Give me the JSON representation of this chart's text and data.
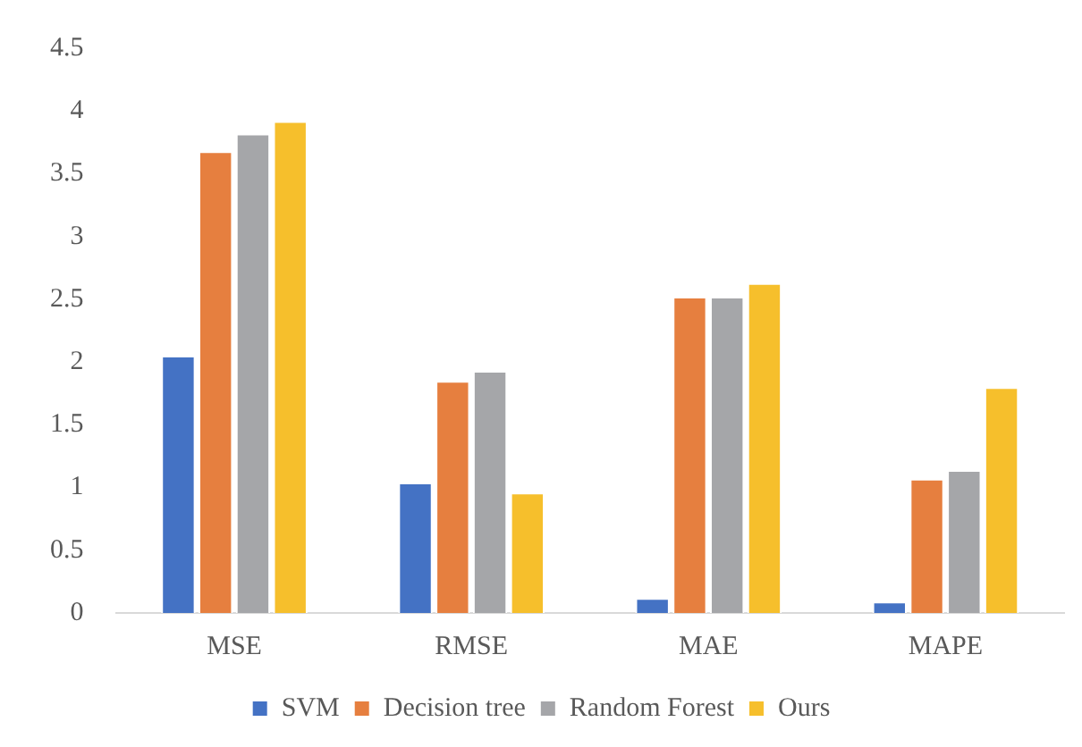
{
  "chart_data": {
    "type": "bar",
    "categories": [
      "MSE",
      "RMSE",
      "MAE",
      "MAPE"
    ],
    "series": [
      {
        "name": "SVM",
        "color": "#4472c4",
        "values": [
          2.05,
          1.04,
          0.12,
          0.09
        ]
      },
      {
        "name": "Decision tree",
        "color": "#e67f3f",
        "values": [
          3.68,
          1.85,
          2.52,
          1.07
        ]
      },
      {
        "name": "Random Forest",
        "color": "#a5a6a9",
        "values": [
          3.82,
          1.93,
          2.52,
          1.14
        ]
      },
      {
        "name": "Ours",
        "color": "#f6bf2c",
        "values": [
          3.92,
          0.96,
          2.63,
          1.8
        ]
      }
    ],
    "ylim": [
      0,
      4.5
    ],
    "yticks": [
      0,
      0.5,
      1,
      1.5,
      2,
      2.5,
      3,
      3.5,
      4,
      4.5
    ],
    "grid": false,
    "legend": "bottom"
  }
}
